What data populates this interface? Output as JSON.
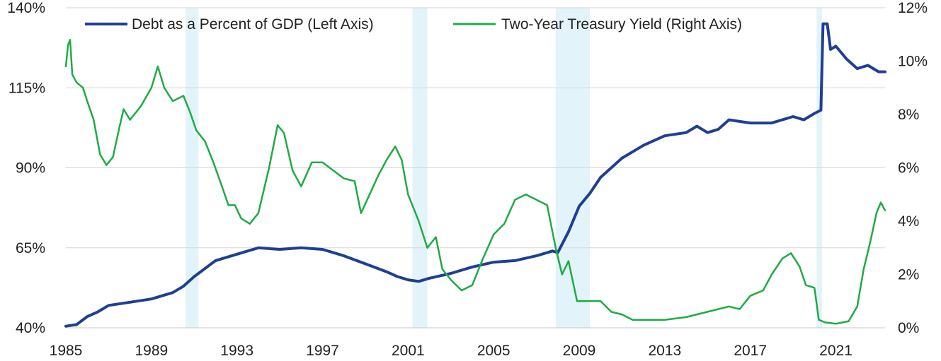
{
  "chart_data": {
    "type": "line",
    "title": "",
    "x_range": [
      1985,
      2023.3
    ],
    "x_ticks": [
      "1985",
      "1989",
      "1993",
      "1997",
      "2001",
      "2005",
      "2009",
      "2013",
      "2017",
      "2021"
    ],
    "y_left": {
      "range": [
        40,
        140
      ],
      "ticks": [
        "40%",
        "65%",
        "90%",
        "115%",
        "140%"
      ]
    },
    "y_right": {
      "range": [
        0,
        12
      ],
      "ticks": [
        "0%",
        "2%",
        "4%",
        "6%",
        "8%",
        "10%",
        "12%"
      ]
    },
    "grid": "horizontal",
    "legend_position": "top",
    "recession_periods": [
      [
        1990.6,
        1991.2
      ],
      [
        2001.2,
        2001.9
      ],
      [
        2007.9,
        2009.5
      ],
      [
        2020.1,
        2020.35
      ]
    ],
    "series": [
      {
        "name": "Debt as a Percent of GDP (Left Axis)",
        "axis": "left",
        "color": "#1f3f93",
        "points": [
          [
            1985,
            40.5
          ],
          [
            1985.5,
            41
          ],
          [
            1986,
            43.5
          ],
          [
            1986.5,
            45
          ],
          [
            1987,
            47
          ],
          [
            1988,
            48
          ],
          [
            1989,
            49
          ],
          [
            1990,
            51
          ],
          [
            1990.5,
            53
          ],
          [
            1991,
            56
          ],
          [
            1992,
            61
          ],
          [
            1993,
            63
          ],
          [
            1994,
            65
          ],
          [
            1995,
            64.5
          ],
          [
            1996,
            65
          ],
          [
            1997,
            64.5
          ],
          [
            1998,
            62.5
          ],
          [
            1999,
            60
          ],
          [
            2000,
            57.5
          ],
          [
            2000.5,
            56
          ],
          [
            2001,
            55
          ],
          [
            2001.5,
            54.5
          ],
          [
            2002,
            55.5
          ],
          [
            2003,
            57
          ],
          [
            2004,
            59
          ],
          [
            2005,
            60.5
          ],
          [
            2006,
            61
          ],
          [
            2007,
            62.5
          ],
          [
            2007.75,
            64
          ],
          [
            2008,
            63.5
          ],
          [
            2008.5,
            70
          ],
          [
            2009,
            78
          ],
          [
            2009.5,
            82
          ],
          [
            2010,
            87
          ],
          [
            2010.5,
            90
          ],
          [
            2011,
            93
          ],
          [
            2012,
            97
          ],
          [
            2013,
            100
          ],
          [
            2014,
            101
          ],
          [
            2014.5,
            103
          ],
          [
            2015,
            101
          ],
          [
            2015.5,
            102
          ],
          [
            2016,
            105
          ],
          [
            2017,
            104
          ],
          [
            2018,
            104
          ],
          [
            2019,
            106
          ],
          [
            2019.5,
            105
          ],
          [
            2020,
            107
          ],
          [
            2020.3,
            108
          ],
          [
            2020.4,
            135
          ],
          [
            2020.6,
            135
          ],
          [
            2020.75,
            127
          ],
          [
            2021,
            128
          ],
          [
            2021.5,
            124
          ],
          [
            2022,
            121
          ],
          [
            2022.5,
            122
          ],
          [
            2023,
            120
          ],
          [
            2023.3,
            120
          ]
        ]
      },
      {
        "name": "Two-Year Treasury Yield (Right Axis)",
        "axis": "right",
        "color": "#1fab45",
        "points": [
          [
            1985,
            9.8
          ],
          [
            1985.1,
            10.6
          ],
          [
            1985.2,
            10.8
          ],
          [
            1985.3,
            9.5
          ],
          [
            1985.5,
            9.2
          ],
          [
            1985.8,
            9.0
          ],
          [
            1986,
            8.5
          ],
          [
            1986.3,
            7.8
          ],
          [
            1986.6,
            6.5
          ],
          [
            1986.9,
            6.1
          ],
          [
            1987.2,
            6.4
          ],
          [
            1987.5,
            7.5
          ],
          [
            1987.7,
            8.2
          ],
          [
            1988,
            7.8
          ],
          [
            1988.5,
            8.3
          ],
          [
            1989,
            9.0
          ],
          [
            1989.3,
            9.8
          ],
          [
            1989.6,
            9.0
          ],
          [
            1990,
            8.5
          ],
          [
            1990.5,
            8.7
          ],
          [
            1990.8,
            8.1
          ],
          [
            1991.1,
            7.4
          ],
          [
            1991.5,
            7.0
          ],
          [
            1991.9,
            6.2
          ],
          [
            1992.3,
            5.3
          ],
          [
            1992.6,
            4.6
          ],
          [
            1992.9,
            4.6
          ],
          [
            1993.2,
            4.1
          ],
          [
            1993.6,
            3.9
          ],
          [
            1994,
            4.3
          ],
          [
            1994.5,
            6.0
          ],
          [
            1994.9,
            7.6
          ],
          [
            1995.2,
            7.3
          ],
          [
            1995.6,
            5.9
          ],
          [
            1996,
            5.3
          ],
          [
            1996.5,
            6.2
          ],
          [
            1997,
            6.2
          ],
          [
            1997.5,
            5.9
          ],
          [
            1998,
            5.6
          ],
          [
            1998.5,
            5.5
          ],
          [
            1998.8,
            4.3
          ],
          [
            1999.2,
            5.0
          ],
          [
            1999.6,
            5.7
          ],
          [
            2000,
            6.3
          ],
          [
            2000.4,
            6.8
          ],
          [
            2000.7,
            6.3
          ],
          [
            2001,
            5.0
          ],
          [
            2001.5,
            4.0
          ],
          [
            2001.9,
            3.0
          ],
          [
            2002.3,
            3.4
          ],
          [
            2002.6,
            2.2
          ],
          [
            2003,
            1.8
          ],
          [
            2003.5,
            1.4
          ],
          [
            2004,
            1.6
          ],
          [
            2004.5,
            2.6
          ],
          [
            2005,
            3.5
          ],
          [
            2005.5,
            3.9
          ],
          [
            2006,
            4.8
          ],
          [
            2006.5,
            5.0
          ],
          [
            2007,
            4.8
          ],
          [
            2007.5,
            4.6
          ],
          [
            2007.9,
            3.0
          ],
          [
            2008.2,
            2.0
          ],
          [
            2008.5,
            2.5
          ],
          [
            2008.9,
            1.0
          ],
          [
            2009.5,
            1.0
          ],
          [
            2010,
            1.0
          ],
          [
            2010.5,
            0.6
          ],
          [
            2011,
            0.5
          ],
          [
            2011.5,
            0.3
          ],
          [
            2012,
            0.3
          ],
          [
            2013,
            0.3
          ],
          [
            2014,
            0.4
          ],
          [
            2015,
            0.6
          ],
          [
            2016,
            0.8
          ],
          [
            2016.5,
            0.7
          ],
          [
            2017,
            1.2
          ],
          [
            2017.6,
            1.4
          ],
          [
            2018,
            2.0
          ],
          [
            2018.5,
            2.6
          ],
          [
            2018.9,
            2.8
          ],
          [
            2019.3,
            2.3
          ],
          [
            2019.6,
            1.6
          ],
          [
            2020,
            1.5
          ],
          [
            2020.2,
            0.3
          ],
          [
            2020.5,
            0.2
          ],
          [
            2021,
            0.15
          ],
          [
            2021.6,
            0.25
          ],
          [
            2022,
            0.8
          ],
          [
            2022.3,
            2.2
          ],
          [
            2022.6,
            3.2
          ],
          [
            2022.9,
            4.3
          ],
          [
            2023.1,
            4.7
          ],
          [
            2023.3,
            4.4
          ]
        ]
      }
    ]
  }
}
